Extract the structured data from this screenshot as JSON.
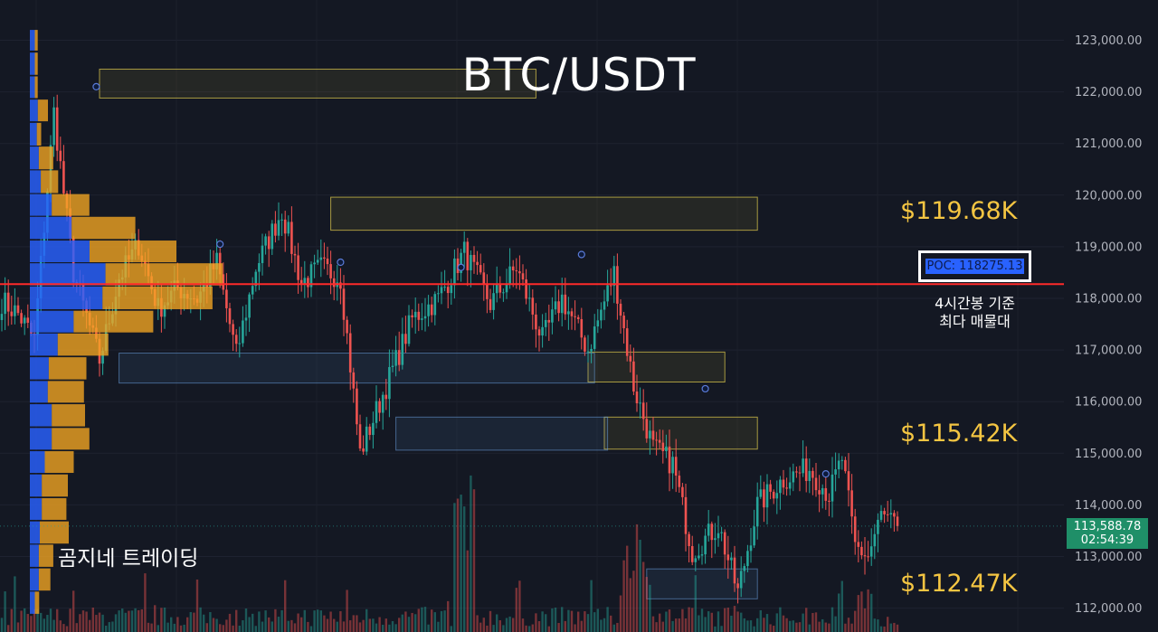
{
  "title": "BTC/USDT",
  "brand": "곰지네 트레이딩",
  "levels": {
    "upper": "$119.68K",
    "middle": "$115.42K",
    "lower": "$112.47K"
  },
  "poc": {
    "label": "POC: 118275.13",
    "note_line1": "4시간봉 기준",
    "note_line2": "최다 매물대"
  },
  "last_price": {
    "value": "113,588.78",
    "countdown": "02:54:39"
  },
  "colors": {
    "background": "#131722",
    "up": "#26a69a",
    "down": "#ef5350",
    "poc_line": "#ff2a2a",
    "level_text": "#f4c542",
    "profile_value_area": "#2962ff",
    "profile_sell": "#f5a623"
  },
  "chart_data": {
    "type": "candlestick",
    "symbol": "BTC/USDT",
    "timeframe": "4h",
    "y_axis": {
      "ticks": [
        "112,000.00",
        "113,000.00",
        "114,000.00",
        "115,000.00",
        "116,000.00",
        "117,000.00",
        "118,000.00",
        "119,000.00",
        "120,000.00",
        "121,000.00",
        "122,000.00",
        "123,000.00"
      ],
      "range": [
        111550,
        123500
      ]
    },
    "poc_price": 118275.13,
    "last_price": 113588.78,
    "waypoints": [
      [
        0,
        117950
      ],
      [
        5,
        117700
      ],
      [
        10,
        117200
      ],
      [
        16,
        121600
      ],
      [
        22,
        118500
      ],
      [
        30,
        116800
      ],
      [
        36,
        118400
      ],
      [
        42,
        119050
      ],
      [
        48,
        117800
      ],
      [
        54,
        118200
      ],
      [
        60,
        118000
      ],
      [
        66,
        118700
      ],
      [
        72,
        116900
      ],
      [
        78,
        118600
      ],
      [
        86,
        119700
      ],
      [
        92,
        118300
      ],
      [
        98,
        118600
      ],
      [
        104,
        118400
      ],
      [
        110,
        115000
      ],
      [
        118,
        116300
      ],
      [
        126,
        117600
      ],
      [
        134,
        118000
      ],
      [
        142,
        118900
      ],
      [
        150,
        117900
      ],
      [
        158,
        118600
      ],
      [
        166,
        117200
      ],
      [
        172,
        118000
      ],
      [
        180,
        117000
      ],
      [
        188,
        118500
      ],
      [
        194,
        116300
      ],
      [
        200,
        115100
      ],
      [
        206,
        114800
      ],
      [
        212,
        113100
      ],
      [
        220,
        113600
      ],
      [
        226,
        112300
      ],
      [
        232,
        114000
      ],
      [
        240,
        114500
      ],
      [
        248,
        114700
      ],
      [
        254,
        114200
      ],
      [
        258,
        114900
      ],
      [
        262,
        113200
      ],
      [
        266,
        113000
      ],
      [
        270,
        113800
      ],
      [
        274,
        113600
      ]
    ],
    "zones": [
      {
        "kind": "supply",
        "low": 121880,
        "high": 122440,
        "from": 30,
        "to": 164
      },
      {
        "kind": "supply",
        "low": 119320,
        "high": 119960,
        "from": 101,
        "to": 232
      },
      {
        "kind": "supply",
        "low": 116380,
        "high": 116960,
        "from": 180,
        "to": 222
      },
      {
        "kind": "supply",
        "low": 115080,
        "high": 115700,
        "from": 185,
        "to": 232
      },
      {
        "kind": "demand",
        "low": 116360,
        "high": 116940,
        "from": 36,
        "to": 182
      },
      {
        "kind": "demand",
        "low": 115060,
        "high": 115700,
        "from": 121,
        "to": 186
      },
      {
        "kind": "demand",
        "low": 112180,
        "high": 112760,
        "from": 198,
        "to": 232
      }
    ],
    "volume_profile": {
      "bins": [
        {
          "low": 122800,
          "high": 123200,
          "value_area": 10,
          "sell": 4
        },
        {
          "low": 122330,
          "high": 122760,
          "value_area": 10,
          "sell": 4
        },
        {
          "low": 121880,
          "high": 122300,
          "value_area": 10,
          "sell": 4
        },
        {
          "low": 121430,
          "high": 121850,
          "value_area": 16,
          "sell": 14
        },
        {
          "low": 120960,
          "high": 121400,
          "value_area": 14,
          "sell": 6
        },
        {
          "low": 120500,
          "high": 120940,
          "value_area": 18,
          "sell": 20
        },
        {
          "low": 120040,
          "high": 120480,
          "value_area": 22,
          "sell": 24
        },
        {
          "low": 119600,
          "high": 120020,
          "value_area": 44,
          "sell": 52
        },
        {
          "low": 119150,
          "high": 119580,
          "value_area": 84,
          "sell": 88
        },
        {
          "low": 118700,
          "high": 119120,
          "value_area": 120,
          "sell": 120
        },
        {
          "low": 118250,
          "high": 118680,
          "value_area": 152,
          "sell": 162
        },
        {
          "low": 117790,
          "high": 118230,
          "value_area": 146,
          "sell": 152
        },
        {
          "low": 117340,
          "high": 117760,
          "value_area": 88,
          "sell": 110
        },
        {
          "low": 116890,
          "high": 117320,
          "value_area": 56,
          "sell": 70
        },
        {
          "low": 116430,
          "high": 116860,
          "value_area": 38,
          "sell": 52
        },
        {
          "low": 115980,
          "high": 116400,
          "value_area": 36,
          "sell": 50
        },
        {
          "low": 115520,
          "high": 115950,
          "value_area": 44,
          "sell": 46
        },
        {
          "low": 115070,
          "high": 115490,
          "value_area": 44,
          "sell": 52
        },
        {
          "low": 114620,
          "high": 115040,
          "value_area": 30,
          "sell": 40
        },
        {
          "low": 114160,
          "high": 114590,
          "value_area": 24,
          "sell": 36
        },
        {
          "low": 113710,
          "high": 114130,
          "value_area": 24,
          "sell": 34
        },
        {
          "low": 113250,
          "high": 113680,
          "value_area": 20,
          "sell": 40
        },
        {
          "low": 112800,
          "high": 113230,
          "value_area": 18,
          "sell": 20
        },
        {
          "low": 112340,
          "high": 112770,
          "value_area": 18,
          "sell": 16
        },
        {
          "low": 111890,
          "high": 112320,
          "value_area": 10,
          "sell": 6
        }
      ]
    },
    "level_labels": [
      {
        "text": "$119.68K",
        "price": 119680
      },
      {
        "text": "$115.42K",
        "price": 115420
      },
      {
        "text": "$112.47K",
        "price": 112470
      }
    ]
  }
}
